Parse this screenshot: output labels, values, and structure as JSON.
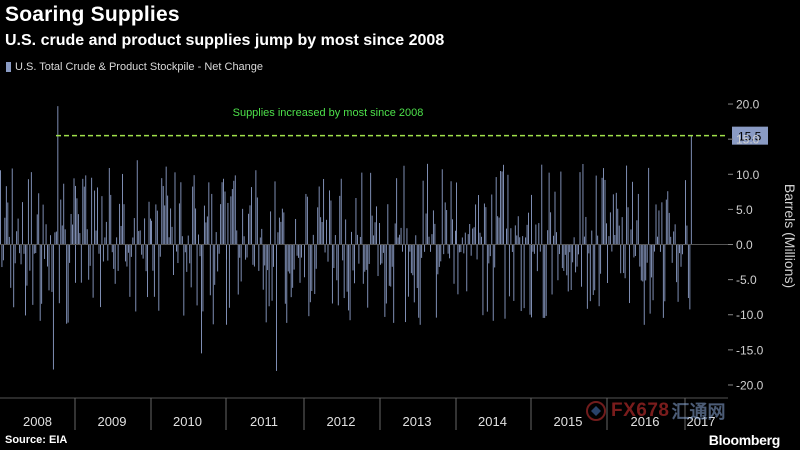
{
  "header": {
    "title": "Soaring Supplies",
    "subtitle": "U.S. crude and product supplies jump by most since 2008"
  },
  "legend": {
    "label": "U.S. Total Crude & Product Stockpile - Net Change"
  },
  "footer": {
    "source": "Source: EIA",
    "brand": "Bloomberg"
  },
  "watermark": {
    "text": "FX678",
    "cn": "汇通网"
  },
  "colors": {
    "background": "#000000",
    "bar": "#8a9bc4",
    "reference_line": "#9fe04a",
    "annotation": "#4de04a",
    "callout_fill": "#8a9bc4"
  },
  "chart_data": {
    "type": "bar",
    "title": "Soaring Supplies",
    "subtitle": "U.S. crude and product supplies jump by most since 2008",
    "ylabel": "Barrels (Millions)",
    "xlabel": "",
    "ylim": [
      -21,
      22
    ],
    "y_ticks": [
      20.0,
      15.0,
      10.0,
      5.0,
      0.0,
      -5.0,
      -10.0,
      -15.0,
      -20.0
    ],
    "y_tick_labels": [
      "20.0",
      "15.0",
      "10.0",
      "5.0",
      "0.0",
      "-5.0",
      "-10.0",
      "-15.0",
      "-20.0"
    ],
    "y_axis_position": "right",
    "grid": false,
    "legend_position": "top-left",
    "categories": [
      "2008",
      "2009",
      "2010",
      "2011",
      "2012",
      "2013",
      "2014",
      "2015",
      "2016",
      "2017"
    ],
    "series": [
      {
        "name": "U.S. Total Crude & Product Stockpile - Net Change",
        "frequency": "weekly",
        "start_year": 2008,
        "end_year": 2017.1,
        "notable_points": [
          {
            "year": 2008.7,
            "value": -17.8
          },
          {
            "year": 2008.75,
            "value": 19.7
          },
          {
            "year": 2010.65,
            "value": -15.5
          },
          {
            "year": 2011.65,
            "value": -18.0
          },
          {
            "year": 2017.08,
            "value": 15.5
          }
        ]
      }
    ],
    "reference_line": {
      "value": 15.5,
      "label": "15.5",
      "annotation": "Supplies increased by most since 2008"
    }
  }
}
